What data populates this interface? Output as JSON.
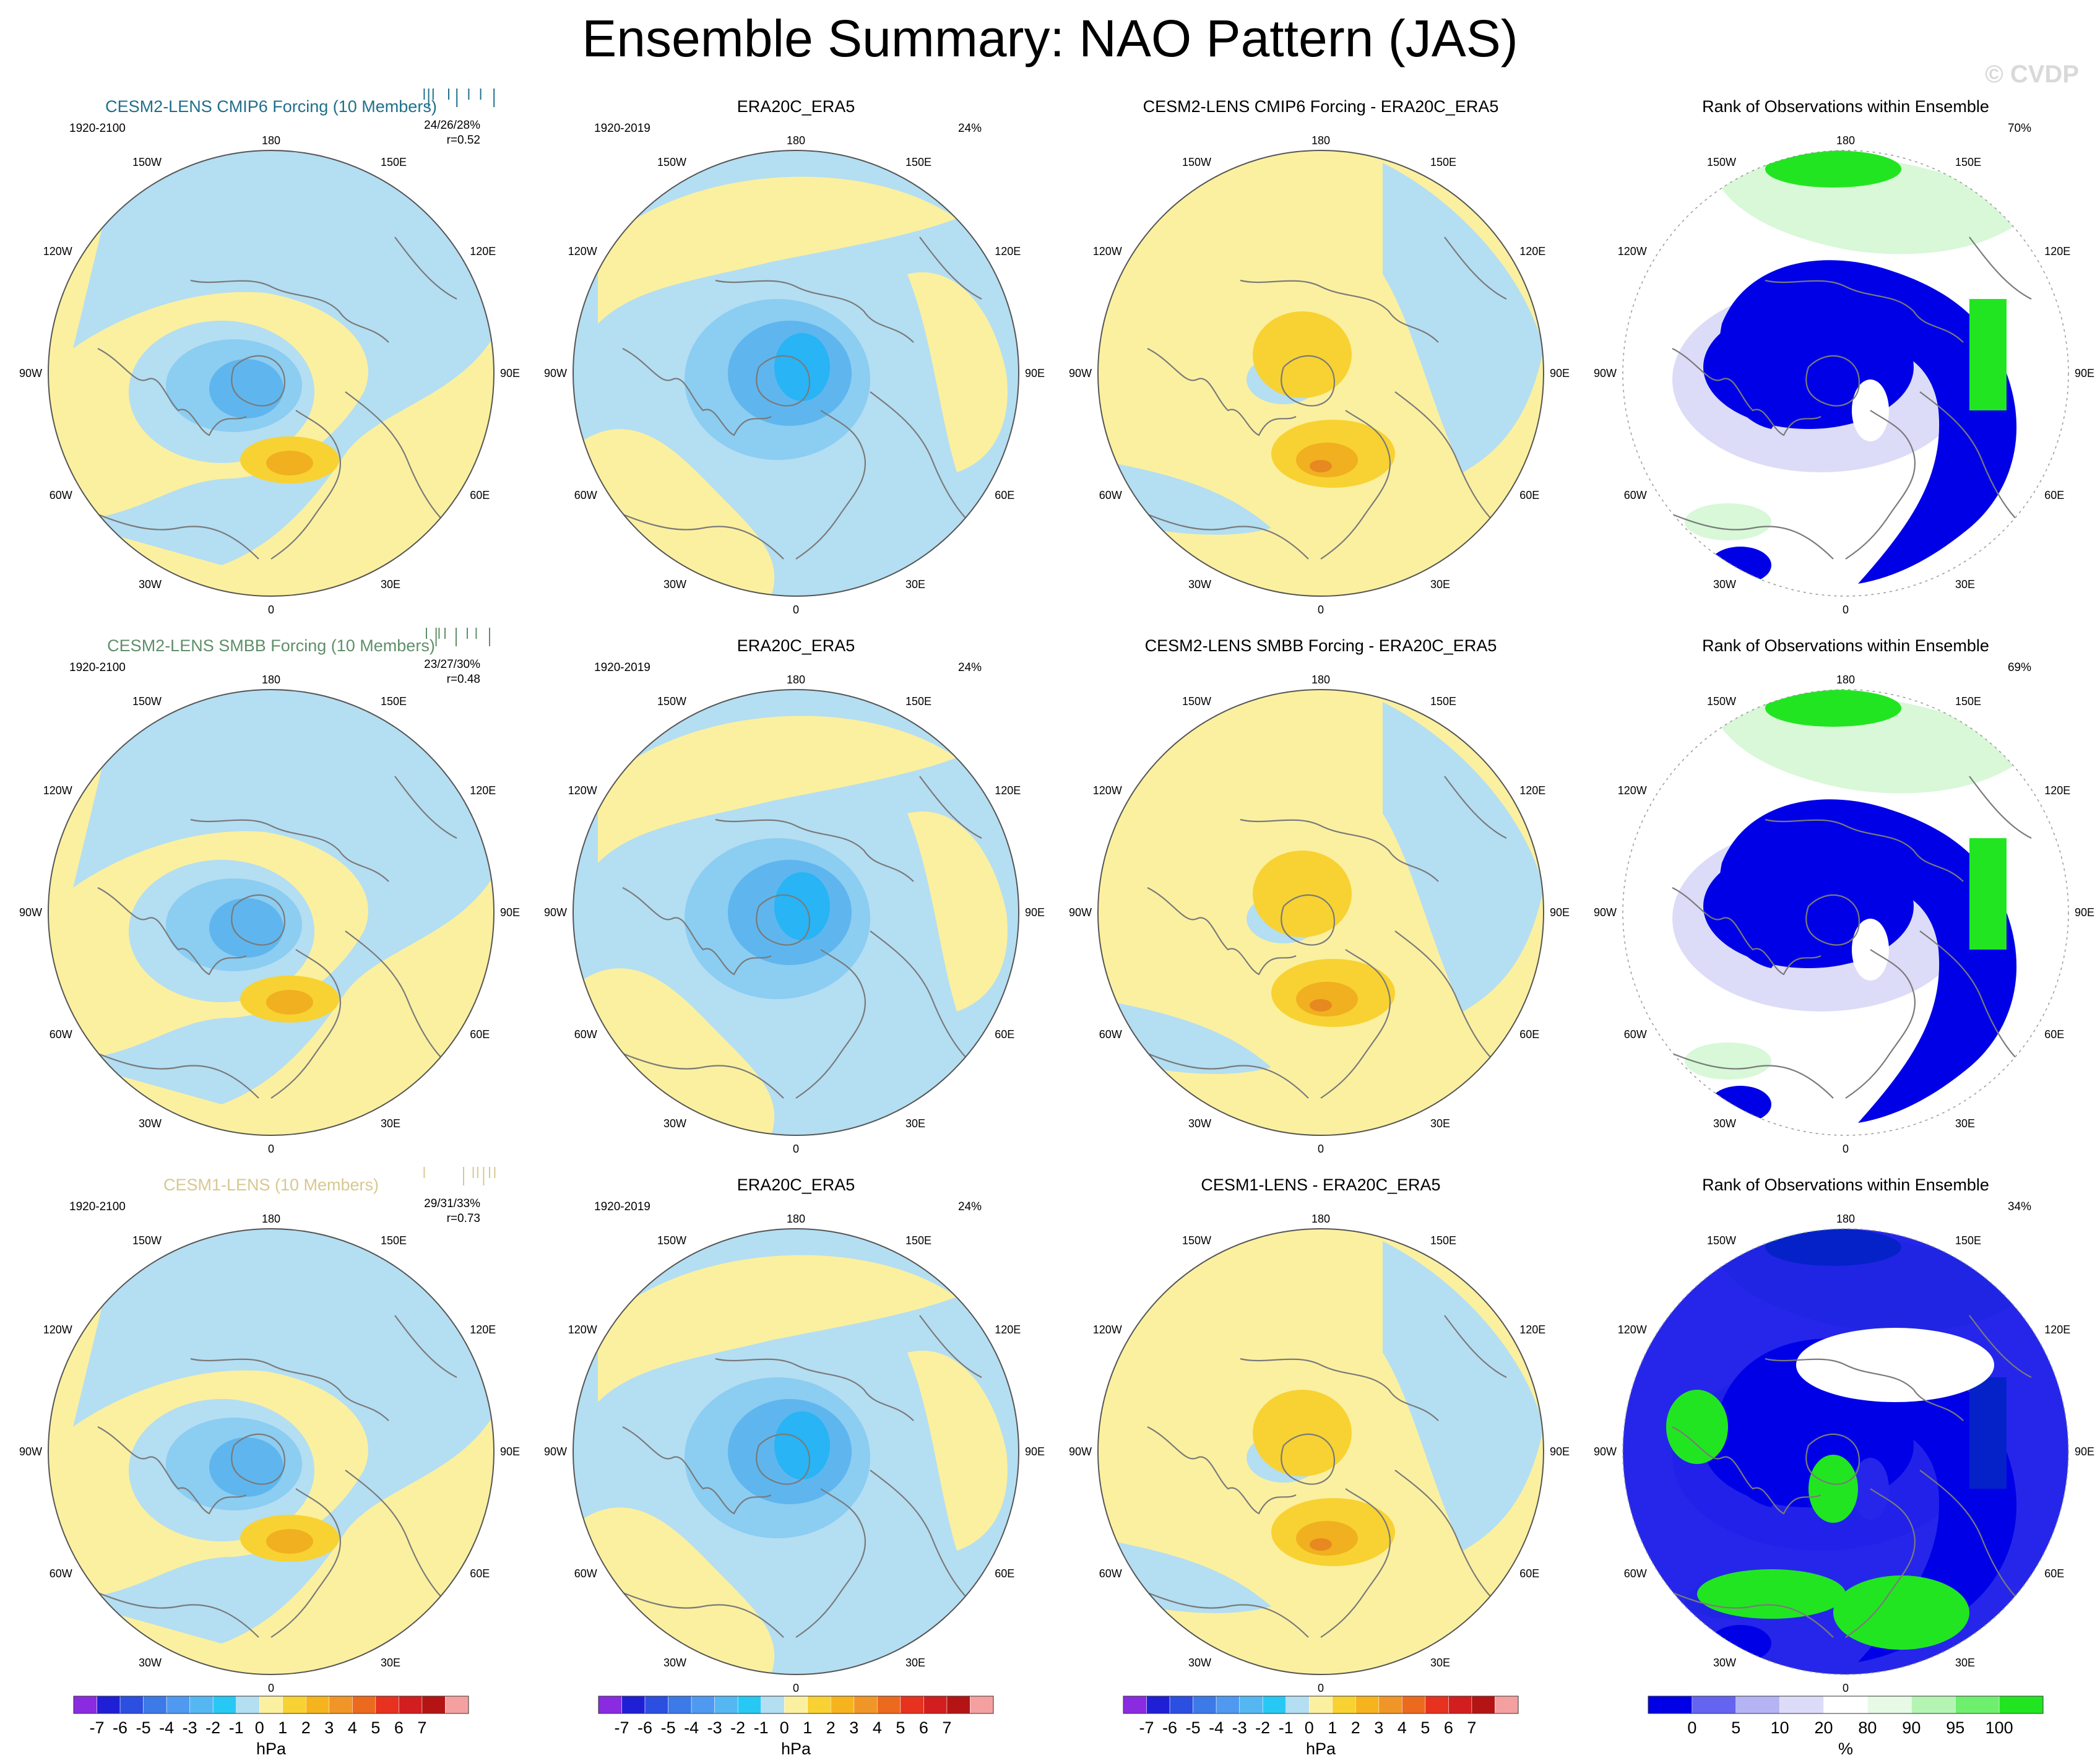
{
  "figure": {
    "title": "Ensemble Summary: NAO Pattern (JAS)",
    "watermark": "© CVDP"
  },
  "colors": {
    "light_blue": "#b4def2",
    "mid_blue": "#8ccdf2",
    "blue": "#5fb6ee",
    "deep_blue": "#28b4f5",
    "light_yellow": "#fbf0a0",
    "gold": "#f8d232",
    "orange": "#f0b020",
    "dark_orange": "#e88820",
    "rank_blue": "#0000e6",
    "rank_lavender": "#dcdcf8",
    "rank_lightgreen": "#d8f8d8",
    "rank_green": "#22e522",
    "ocean_white": "#ffffff",
    "coast": "#7a7a7a",
    "title_cmip6": "#1f6f8b",
    "title_smbb": "#5f8f6a",
    "title_cesm1": "#d8c890"
  },
  "map_labels": {
    "top": "180",
    "bottom": "0",
    "left": "90W",
    "right": "90E",
    "upper_left_outer": "150W",
    "upper_right_outer": "150E",
    "upper_left_mid": "120W",
    "upper_right_mid": "120E",
    "lower_left_mid": "60W",
    "lower_right_mid": "60E",
    "lower_left_outer": "30W",
    "lower_right_outer": "30E"
  },
  "chart_data": {
    "type": "heatmap",
    "projection": "north-polar-stereographic",
    "variable": "NAO Pattern (JAS)",
    "units": "hPa",
    "rows": [
      {
        "panels": [
          {
            "kind": "ensemble",
            "title": "CESM2-LENS CMIP6 Forcing (10 Members)",
            "title_color": "title_cmip6",
            "period": "1920-2100",
            "pct": "24/26/28%",
            "corr": "r=0.52",
            "ticks": [
              0.02,
              0.08,
              0.14,
              0.35,
              0.46,
              0.62,
              0.78,
              0.96
            ]
          },
          {
            "kind": "obs",
            "title": "ERA20C_ERA5",
            "period": "1920-2019",
            "pct": "24%"
          },
          {
            "kind": "diff",
            "title": "CESM2-LENS CMIP6 Forcing - ERA20C_ERA5"
          },
          {
            "kind": "rank",
            "title": "Rank of Observations within Ensemble",
            "pct": "70%"
          }
        ]
      },
      {
        "panels": [
          {
            "kind": "ensemble",
            "title": "CESM2-LENS SMBB Forcing (10 Members)",
            "title_color": "title_smbb",
            "period": "1920-2100",
            "pct": "23/27/30%",
            "corr": "r=0.48",
            "ticks": [
              0.05,
              0.18,
              0.22,
              0.3,
              0.45,
              0.6,
              0.72,
              0.9
            ]
          },
          {
            "kind": "obs",
            "title": "ERA20C_ERA5",
            "period": "1920-2019",
            "pct": "24%"
          },
          {
            "kind": "diff",
            "title": "CESM2-LENS SMBB Forcing - ERA20C_ERA5"
          },
          {
            "kind": "rank",
            "title": "Rank of Observations within Ensemble",
            "pct": "69%"
          }
        ]
      },
      {
        "panels": [
          {
            "kind": "ensemble",
            "title": "CESM1-LENS (10 Members)",
            "title_color": "title_cesm1",
            "period": "1920-2100",
            "pct": "29/31/33%",
            "corr": "r=0.73",
            "ticks": [
              0.02,
              0.55,
              0.68,
              0.74,
              0.82,
              0.9,
              0.97
            ]
          },
          {
            "kind": "obs",
            "title": "ERA20C_ERA5",
            "period": "1920-2019",
            "pct": "24%"
          },
          {
            "kind": "diff",
            "title": "CESM1-LENS - ERA20C_ERA5"
          },
          {
            "kind": "rank",
            "title": "Rank of Observations within Ensemble",
            "pct": "34%"
          }
        ]
      }
    ],
    "colorbar_hpa": {
      "units": "hPa",
      "colors": [
        "#8a2be2",
        "#1f1fd6",
        "#2b4fe0",
        "#3c7ae8",
        "#4f9af0",
        "#55b7f2",
        "#28c8f5",
        "#b4def2",
        "#fbf0a0",
        "#f8d232",
        "#f5b41e",
        "#f09628",
        "#ec6a1e",
        "#e6321e",
        "#d21e1e",
        "#b41414",
        "#f5a0a0"
      ],
      "labels": [
        "-7",
        "-6",
        "-5",
        "-4",
        "-3",
        "-2",
        "-1",
        "0",
        "1",
        "2",
        "3",
        "4",
        "5",
        "6",
        "7"
      ]
    },
    "colorbar_rank": {
      "units": "%",
      "colors": [
        "#0000e6",
        "#6464f0",
        "#b4b4f5",
        "#dcdcf8",
        "#ffffff",
        "#e6fae6",
        "#b4f5b4",
        "#6ef06e",
        "#22e522"
      ],
      "labels": [
        "0",
        "5",
        "10",
        "20",
        "80",
        "90",
        "95",
        "100"
      ]
    }
  }
}
